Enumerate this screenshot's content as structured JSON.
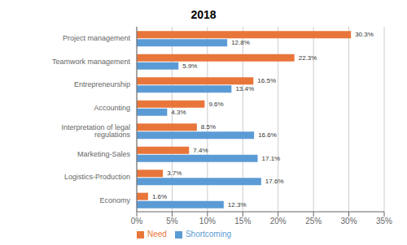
{
  "chart_data": {
    "type": "bar",
    "orientation": "horizontal",
    "title": "2018",
    "categories": [
      "Project management",
      "Teamwork management",
      "Entrepreneurship",
      "Accounting",
      "Interpretation of legal regulations",
      "Marketing-Sales",
      "Logistics-Production",
      "Economy"
    ],
    "series": [
      {
        "name": "Need",
        "color": "#E8763A",
        "values": [
          30.3,
          22.3,
          16.5,
          9.6,
          8.5,
          7.4,
          3.7,
          1.6
        ],
        "value_labels": [
          "30.3%",
          "22.3%",
          "16.5%",
          "9.6%",
          "8.5%",
          "7.4%",
          "3.7%",
          "1.6%"
        ]
      },
      {
        "name": "Shortcoming",
        "color": "#5B9BD5",
        "values": [
          12.8,
          5.9,
          13.4,
          4.3,
          16.6,
          17.1,
          17.6,
          12.3
        ],
        "value_labels": [
          "12.8%",
          "5.9%",
          "13.4%",
          "4.3%",
          "16.6%",
          "17.1%",
          "17.6%",
          "12.3%"
        ]
      }
    ],
    "xlim": [
      0,
      35
    ],
    "xticks": [
      {
        "value": 0,
        "label": "0%"
      },
      {
        "value": 5,
        "label": "5%"
      },
      {
        "value": 10,
        "label": "10%"
      },
      {
        "value": 15,
        "label": "15%"
      },
      {
        "value": 20,
        "label": "20%"
      },
      {
        "value": 25,
        "label": "25%"
      },
      {
        "value": 30,
        "label": "30%"
      },
      {
        "value": 35,
        "label": "35%"
      }
    ],
    "grid": true,
    "legend": "lower left",
    "data_labels": true
  }
}
